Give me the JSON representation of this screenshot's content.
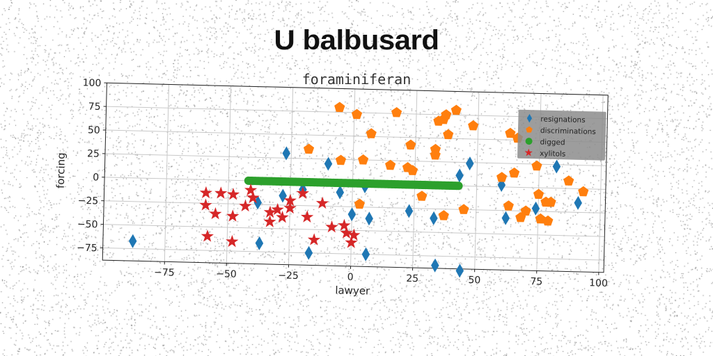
{
  "chart_data": {
    "type": "scatter",
    "title": "U balbusard",
    "subtitle": "foraminiferan",
    "xlabel": "lawyer",
    "ylabel": "forcing",
    "xlim": [
      -100,
      102
    ],
    "ylim": [
      -88,
      100
    ],
    "xticks": [
      -75,
      -50,
      -25,
      0,
      25,
      50,
      75,
      100
    ],
    "yticks": [
      -75,
      -50,
      -25,
      0,
      25,
      50,
      75,
      100
    ],
    "tick_labels_x": [
      "−75",
      "−50",
      "−25",
      "0",
      "25",
      "50",
      "75",
      "100"
    ],
    "tick_labels_y": [
      "−75",
      "−50",
      "−25",
      "0",
      "25",
      "50",
      "75",
      "100"
    ],
    "grid": true,
    "legend_position": "top-right",
    "series": [
      {
        "name": "resignations",
        "marker": "diamond",
        "color": "#1f77b4",
        "points": [
          [
            -88,
            -67
          ],
          [
            -37,
            -66
          ],
          [
            -27,
            30
          ],
          [
            -10,
            20
          ],
          [
            -38,
            -23
          ],
          [
            -28,
            -15
          ],
          [
            -20,
            -8
          ],
          [
            -17,
            -75
          ],
          [
            -5,
            -10
          ],
          [
            5,
            -3
          ],
          [
            0,
            -33
          ],
          [
            7,
            -37
          ],
          [
            6,
            -75
          ],
          [
            23,
            -28
          ],
          [
            33,
            -35
          ],
          [
            34,
            -85
          ],
          [
            44,
            -90
          ],
          [
            43,
            11
          ],
          [
            47,
            24
          ],
          [
            60,
            2
          ],
          [
            62,
            -33
          ],
          [
            74,
            -22
          ],
          [
            82,
            23
          ],
          [
            91,
            -15
          ]
        ]
      },
      {
        "name": "discriminations",
        "marker": "pentagon",
        "color": "#ff7f0e",
        "points": [
          [
            -6,
            80
          ],
          [
            1,
            73
          ],
          [
            17,
            76
          ],
          [
            7,
            53
          ],
          [
            -18,
            35
          ],
          [
            -5,
            24
          ],
          [
            4,
            25
          ],
          [
            15,
            20
          ],
          [
            22,
            18
          ],
          [
            24,
            15
          ],
          [
            23,
            42
          ],
          [
            33,
            38
          ],
          [
            33,
            32
          ],
          [
            34,
            68
          ],
          [
            36,
            70
          ],
          [
            37,
            75
          ],
          [
            41,
            80
          ],
          [
            48,
            64
          ],
          [
            38,
            54
          ],
          [
            63,
            57
          ],
          [
            66,
            52
          ],
          [
            28,
            -12
          ],
          [
            37,
            -32
          ],
          [
            45,
            -25
          ],
          [
            63,
            -20
          ],
          [
            68,
            -32
          ],
          [
            70,
            -25
          ],
          [
            76,
            -33
          ],
          [
            80,
            -15
          ],
          [
            79,
            -35
          ],
          [
            75,
            -7
          ],
          [
            74,
            23
          ],
          [
            65,
            15
          ],
          [
            60,
            10
          ],
          [
            78,
            -15
          ],
          [
            87,
            8
          ],
          [
            93,
            -3
          ],
          [
            3,
            -22
          ]
        ]
      },
      {
        "name": "digged",
        "marker": "circle",
        "color": "#2ca02c",
        "line": {
          "x_from": -42,
          "x_to": 43,
          "y": 0
        }
      },
      {
        "name": "xylitols",
        "marker": "star",
        "color": "#d62728",
        "points": [
          [
            -58,
            -60
          ],
          [
            -59,
            -14
          ],
          [
            -53,
            -14
          ],
          [
            -48,
            -15
          ],
          [
            -59,
            -27
          ],
          [
            -55,
            -36
          ],
          [
            -48,
            -38
          ],
          [
            -43,
            -27
          ],
          [
            -41,
            -10
          ],
          [
            -40,
            -18
          ],
          [
            -33,
            -33
          ],
          [
            -30,
            -30
          ],
          [
            -28,
            -38
          ],
          [
            -25,
            -28
          ],
          [
            -25,
            -20
          ],
          [
            -20,
            -12
          ],
          [
            -18,
            -37
          ],
          [
            -15,
            -61
          ],
          [
            -12,
            -22
          ],
          [
            -8,
            -47
          ],
          [
            -3,
            -45
          ],
          [
            -2,
            -53
          ],
          [
            1,
            -55
          ],
          [
            0,
            -63
          ],
          [
            -48,
            -65
          ],
          [
            -40,
            -18
          ],
          [
            -33,
            -43
          ]
        ]
      }
    ]
  }
}
